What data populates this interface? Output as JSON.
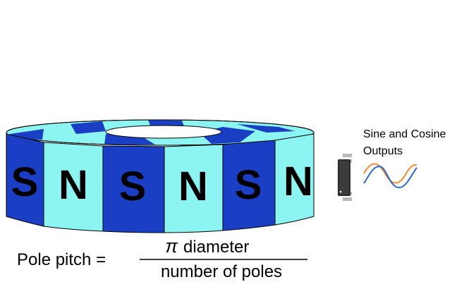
{
  "magnet": {
    "poles": [
      "S",
      "N",
      "S",
      "N",
      "S",
      "N"
    ],
    "colors": {
      "dark_segment": "#1A3FC4",
      "light_segment": "#8CF5F2",
      "outline": "#000000"
    }
  },
  "sensor": {
    "label_line1": "Sine and Cosine",
    "label_line2": "Outputs",
    "chip_icon": "ic-chip-icon",
    "wave_icon": "sine-cosine-wave-icon",
    "colors": {
      "sine_wave": "#2E67C9",
      "cosine_wave": "#F28A2E",
      "chip_body": "#2A2A2A"
    }
  },
  "formula": {
    "lhs": "Pole pitch =",
    "pi_symbol": "π",
    "numerator": "diameter",
    "denominator": "number of poles"
  }
}
